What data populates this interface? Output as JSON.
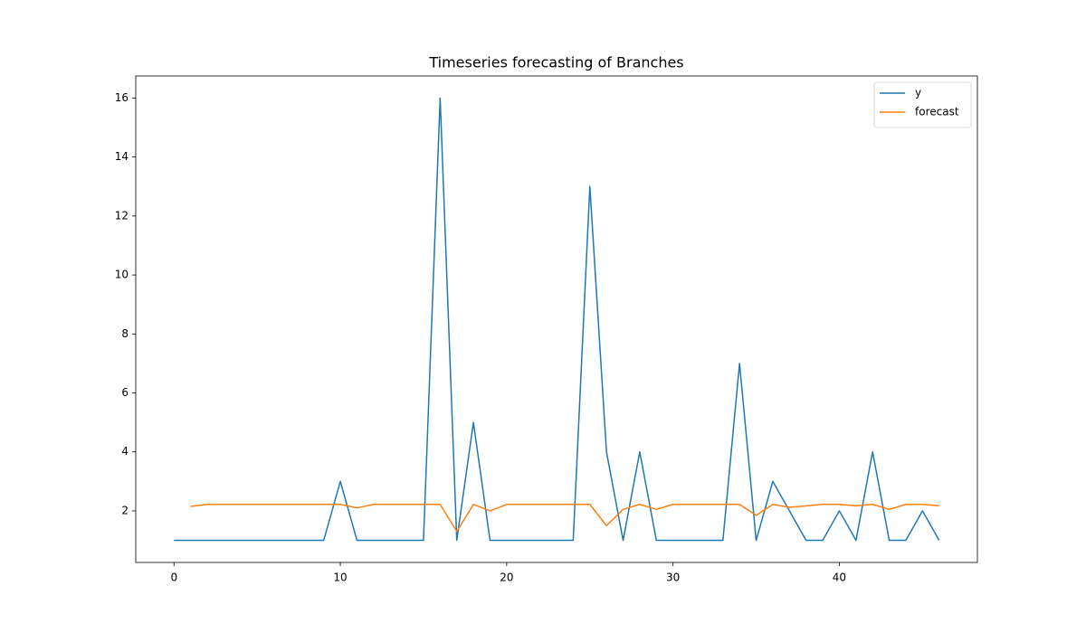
{
  "chart_data": {
    "type": "line",
    "title": "Timeseries forecasting of Branches",
    "x": [
      0,
      1,
      2,
      3,
      4,
      5,
      6,
      7,
      8,
      9,
      10,
      11,
      12,
      13,
      14,
      15,
      16,
      17,
      18,
      19,
      20,
      21,
      22,
      23,
      24,
      25,
      26,
      27,
      28,
      29,
      30,
      31,
      32,
      33,
      34,
      35,
      36,
      37,
      38,
      39,
      40,
      41,
      42,
      43,
      44,
      45,
      46
    ],
    "series": [
      {
        "name": "y",
        "color": "#1f77b4",
        "values": [
          1,
          1,
          1,
          1,
          1,
          1,
          1,
          1,
          1,
          1,
          3,
          1,
          1,
          1,
          1,
          1,
          16,
          1,
          5,
          1,
          1,
          1,
          1,
          1,
          1,
          13,
          4,
          1,
          4,
          1,
          1,
          1,
          1,
          1,
          7,
          1,
          3,
          2,
          1,
          1,
          2,
          1,
          4,
          1,
          1,
          2,
          1
        ]
      },
      {
        "name": "forecast",
        "color": "#ff7f0e",
        "values": [
          null,
          2.15,
          2.22,
          2.22,
          2.22,
          2.22,
          2.22,
          2.22,
          2.22,
          2.22,
          2.22,
          2.1,
          2.22,
          2.22,
          2.22,
          2.22,
          2.22,
          1.3,
          2.22,
          2.0,
          2.22,
          2.22,
          2.22,
          2.22,
          2.22,
          2.22,
          1.5,
          2.05,
          2.22,
          2.05,
          2.22,
          2.22,
          2.22,
          2.22,
          2.22,
          1.85,
          2.22,
          2.12,
          2.17,
          2.22,
          2.22,
          2.17,
          2.22,
          2.05,
          2.22,
          2.22,
          2.17
        ]
      }
    ],
    "xlim": [
      -2.3,
      48.3
    ],
    "ylim": [
      0.25,
      16.75
    ],
    "xticks": [
      0,
      10,
      20,
      30,
      40
    ],
    "yticks": [
      2,
      4,
      6,
      8,
      10,
      12,
      14,
      16
    ],
    "legend": "upper right"
  }
}
